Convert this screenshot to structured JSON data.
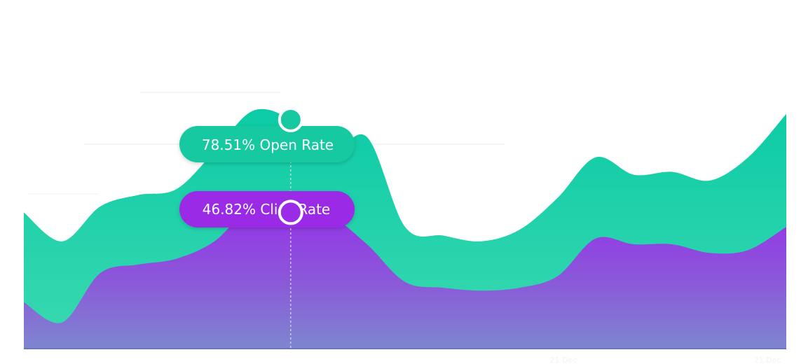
{
  "chart_data": {
    "type": "area",
    "title": "",
    "xlabel": "",
    "ylabel": "",
    "x": [
      0,
      1,
      2,
      3,
      4,
      5,
      6,
      7,
      8,
      9,
      10,
      11,
      12,
      13,
      14,
      15,
      16,
      17,
      18,
      19,
      20
    ],
    "ylim": [
      0,
      100
    ],
    "grid": false,
    "series": [
      {
        "name": "Open Rate",
        "color": "#1dcea7",
        "values": [
          47,
          37,
          49,
          53,
          55,
          68,
          82,
          79,
          67,
          73,
          42,
          39,
          37,
          41,
          52,
          66,
          60,
          61,
          58,
          66,
          81
        ]
      },
      {
        "name": "Click Rate",
        "color": "#9a2be6",
        "values": [
          16,
          9,
          26,
          29,
          31,
          37,
          49,
          47,
          46,
          36,
          23,
          21,
          20,
          21,
          25,
          38,
          36,
          36,
          33,
          34,
          42
        ]
      }
    ],
    "tooltip": {
      "index": 7,
      "items": [
        {
          "label": "78.51% Open Rate",
          "value": 78.51,
          "color": "#17c9a1"
        },
        {
          "label": "46.82% Click Rate",
          "value": 46.82,
          "color": "#9a2be6"
        }
      ]
    },
    "x_tick_labels": [
      "21 Dec",
      "21 Dec"
    ]
  }
}
